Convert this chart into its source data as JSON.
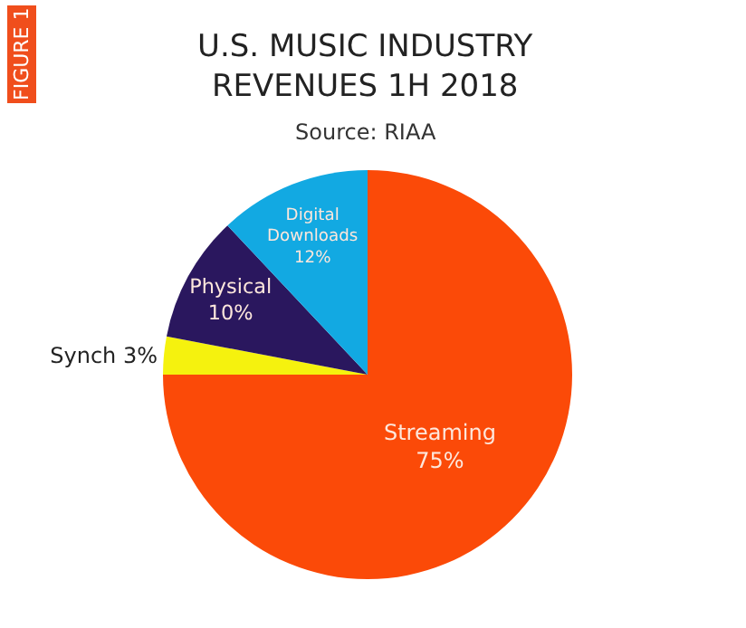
{
  "chart_data": {
    "type": "pie",
    "title": "U.S. MUSIC INDUSTRY\nREVENUES 1H 2018",
    "subtitle": "Source: RIAA",
    "annotations": [
      "FIGURE 1"
    ],
    "categories": [
      "Streaming",
      "Synch",
      "Physical",
      "Digital Downloads"
    ],
    "values": [
      75,
      3,
      10,
      12
    ],
    "value_labels": [
      "75%",
      "3%",
      "10%",
      "12%"
    ],
    "colors": [
      "#fb4a08",
      "#f5f20e",
      "#2a175e",
      "#12a9e2"
    ],
    "legend": false
  }
}
